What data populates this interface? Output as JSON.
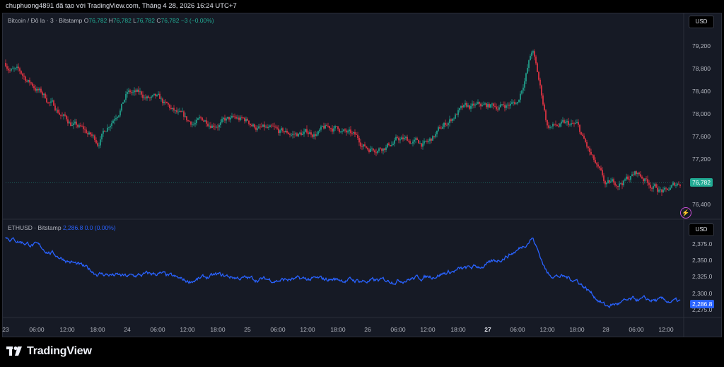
{
  "header": {
    "info": "chuphuong4891 đã tạo với TradingView.com, Tháng 4 28, 2026 16:24 UTC+7"
  },
  "top_pane": {
    "symbol": "Bitcoin / Đô la · 3 · Bitstamp",
    "ohlc": [
      {
        "k": "O",
        "v": "76,782"
      },
      {
        "k": "H",
        "v": "76,782"
      },
      {
        "k": "L",
        "v": "76,782"
      },
      {
        "k": "C",
        "v": "76,782"
      }
    ],
    "change": "−3 (−0.00%)",
    "currency": "USD",
    "last_price": "76,782",
    "y_ticks": [
      "79,200",
      "78,800",
      "78,400",
      "78,000",
      "77,600",
      "77,200",
      "76,400"
    ]
  },
  "bottom_pane": {
    "symbol": "ETHUSD · Bitstamp",
    "value": "2,286.8",
    "change": "0.0 (0.00%)",
    "currency": "USD",
    "last_price": "2,286.8",
    "y_ticks": [
      "2,375.0",
      "2,350.0",
      "2,325.0",
      "2,300.0",
      "2,275.0"
    ]
  },
  "x_axis": [
    "23",
    "06:00",
    "12:00",
    "18:00",
    "24",
    "06:00",
    "12:00",
    "18:00",
    "25",
    "06:00",
    "12:00",
    "18:00",
    "26",
    "06:00",
    "12:00",
    "18:00",
    "27",
    "06:00",
    "12:00",
    "18:00",
    "28",
    "06:00",
    "12:00"
  ],
  "brand": "TradingView",
  "colors": {
    "up": "#22ab94",
    "down": "#f23645",
    "eth_line": "#2962ff",
    "accent": "#c94fd6"
  },
  "chart_data": [
    {
      "type": "candlestick",
      "title": "Bitcoin / Đô la · 3 · Bitstamp",
      "ylim": [
        76200,
        79500
      ],
      "x": [
        "23 00:00",
        "23 06:00",
        "23 12:00",
        "23 18:00",
        "24 00:00",
        "24 06:00",
        "24 12:00",
        "24 18:00",
        "25 00:00",
        "25 06:00",
        "25 12:00",
        "25 18:00",
        "26 00:00",
        "26 06:00",
        "26 12:00",
        "26 18:00",
        "27 00:00",
        "27 06:00",
        "27 09:00",
        "27 12:00",
        "27 18:00",
        "28 00:00",
        "28 06:00",
        "28 12:00",
        "28 16:24"
      ],
      "close": [
        78900,
        78450,
        77900,
        77500,
        78400,
        78200,
        77800,
        77900,
        77850,
        77600,
        77650,
        77750,
        77400,
        77550,
        77450,
        78050,
        78100,
        78200,
        79150,
        77800,
        77750,
        76650,
        76950,
        76600,
        76782
      ]
    },
    {
      "type": "line",
      "title": "ETHUSD · Bitstamp",
      "ylim": [
        2265,
        2390
      ],
      "x": [
        "23 00:00",
        "23 06:00",
        "23 12:00",
        "23 18:00",
        "24 00:00",
        "24 06:00",
        "24 12:00",
        "24 18:00",
        "25 00:00",
        "25 06:00",
        "25 12:00",
        "25 18:00",
        "26 00:00",
        "26 06:00",
        "26 12:00",
        "26 18:00",
        "27 00:00",
        "27 06:00",
        "27 09:00",
        "27 12:00",
        "27 18:00",
        "28 00:00",
        "28 06:00",
        "28 12:00",
        "28 16:24"
      ],
      "values": [
        2385,
        2372,
        2350,
        2330,
        2325,
        2330,
        2318,
        2327,
        2322,
        2320,
        2321,
        2321,
        2318,
        2320,
        2325,
        2335,
        2343,
        2365,
        2385,
        2330,
        2320,
        2280,
        2290,
        2288,
        2286.8
      ]
    }
  ]
}
